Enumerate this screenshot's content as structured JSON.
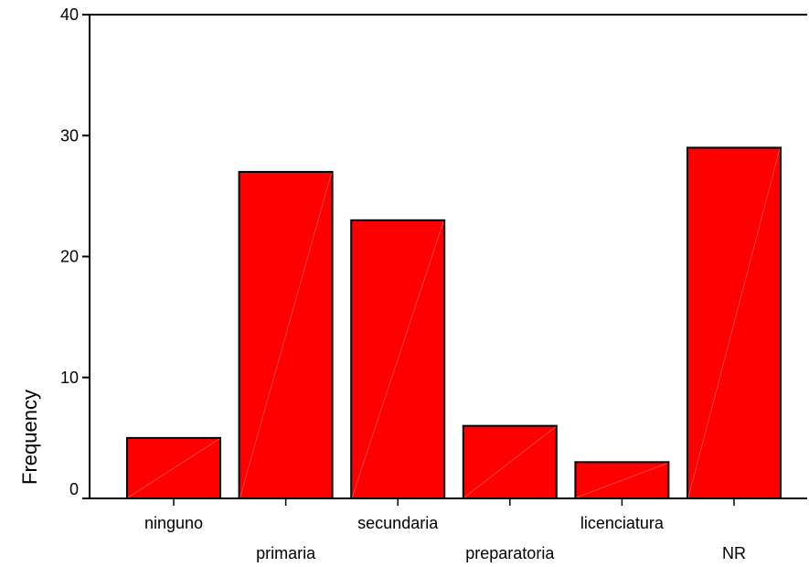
{
  "chart_data": {
    "type": "bar",
    "categories": [
      "ninguno",
      "primaria",
      "secundaria",
      "preparatoria",
      "licenciatura",
      "NR"
    ],
    "values": [
      5,
      27,
      23,
      6,
      3,
      29
    ],
    "ylabel": "Frequency",
    "xlabel": "",
    "ylim": [
      0,
      40
    ],
    "yticks": [
      0,
      10,
      20,
      30,
      40
    ],
    "bar_color": "#ff0000",
    "grid": false,
    "legend": "none"
  }
}
